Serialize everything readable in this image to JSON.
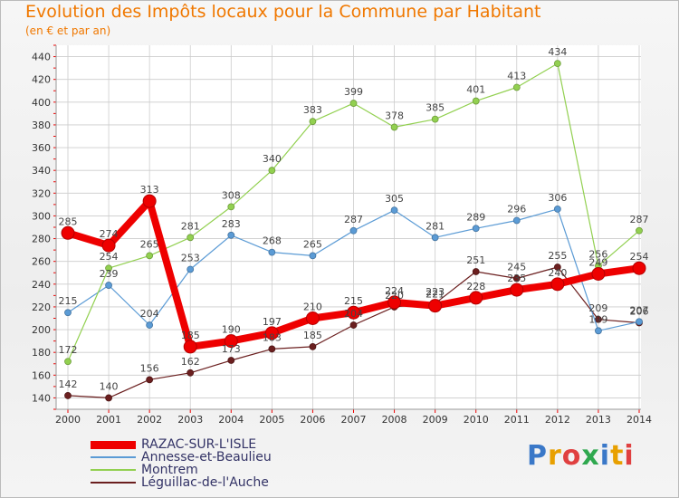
{
  "chart_data": {
    "type": "line",
    "title": "Evolution des Impôts locaux pour la Commune par Habitant",
    "subtitle": "(en € et par an)",
    "x": [
      "2000",
      "2001",
      "2002",
      "2003",
      "2004",
      "2005",
      "2006",
      "2007",
      "2008",
      "2009",
      "2010",
      "2011",
      "2012",
      "2013",
      "2014"
    ],
    "ylim": [
      130,
      450
    ],
    "yticks": [
      140,
      160,
      180,
      200,
      220,
      240,
      260,
      280,
      300,
      320,
      340,
      360,
      380,
      400,
      420,
      440
    ],
    "series": [
      {
        "name": "Léguillac-de-l'Auche",
        "color": "#6b1f1f",
        "width": 1.2,
        "values": [
          142,
          140,
          156,
          162,
          173,
          183,
          185,
          204,
          220,
          223,
          251,
          245,
          255,
          209,
          206
        ],
        "labels": [
          "142",
          "140",
          "156",
          "162",
          "173",
          "183",
          "185",
          "204",
          "220",
          "223",
          "251",
          "245",
          "255",
          "209",
          "206"
        ]
      },
      {
        "name": "Annesse-et-Beaulieu",
        "color": "#5b9bd5",
        "width": 1.2,
        "values": [
          215,
          239,
          204,
          253,
          283,
          268,
          265,
          287,
          305,
          281,
          289,
          296,
          306,
          199,
          207
        ],
        "labels": [
          "215",
          "239",
          "204",
          "253",
          "283",
          "268",
          "265",
          "287",
          "305",
          "281",
          "289",
          "296",
          "306",
          "199",
          "207"
        ]
      },
      {
        "name": "Montrem",
        "color": "#92d050",
        "width": 1.2,
        "values": [
          172,
          254,
          265,
          281,
          308,
          340,
          383,
          399,
          378,
          385,
          401,
          413,
          434,
          256,
          287
        ],
        "labels": [
          "172",
          "254",
          "265",
          "281",
          "308",
          "340",
          "383",
          "399",
          "378",
          "385",
          "401",
          "413",
          "434",
          "256",
          "287"
        ]
      },
      {
        "name": "RAZAC-SUR-L'ISLE",
        "color": "#ee0000",
        "width": 8,
        "values": [
          285,
          274,
          313,
          185,
          190,
          197,
          210,
          215,
          224,
          221,
          228,
          235,
          240,
          249,
          254
        ],
        "labels": [
          "285",
          "274",
          "313",
          "185",
          "190",
          "197",
          "210",
          "215",
          "224",
          "221",
          "228",
          "235",
          "240",
          "249",
          "254"
        ]
      }
    ]
  },
  "legend": [
    {
      "label": "RAZAC-SUR-L'ISLE"
    },
    {
      "label": "Annesse-et-Beaulieu"
    },
    {
      "label": "Montrem"
    },
    {
      "label": "Léguillac-de-l'Auche"
    }
  ],
  "logo": {
    "text": "Proxiti"
  }
}
